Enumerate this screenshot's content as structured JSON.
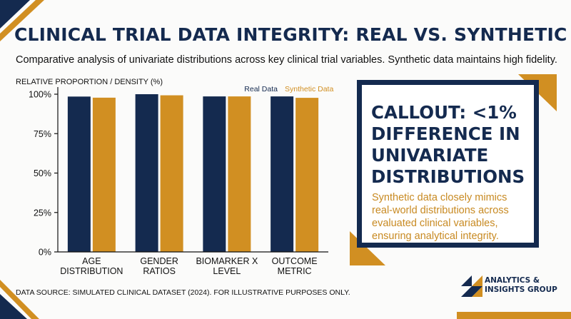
{
  "header": {
    "title": "CLINICAL TRIAL DATA INTEGRITY: REAL VS. SYNTHETIC",
    "subtitle": "Comparative analysis of univariate distributions across key clinical trial variables. Synthetic data maintains high fidelity."
  },
  "chart_data": {
    "type": "bar",
    "ylabel": "RELATIVE PROPORTION / DENSITY (%)",
    "categories": [
      [
        "AGE",
        "DISTRIBUTION"
      ],
      [
        "GENDER",
        "RATIOS"
      ],
      [
        "BIOMARKER X",
        "LEVEL"
      ],
      [
        "OUTCOME",
        "METRIC"
      ]
    ],
    "series": [
      {
        "name": "Real Data",
        "values": [
          98.5,
          100,
          98.6,
          98.6
        ],
        "color": "#142a4f"
      },
      {
        "name": "Synthetic Data",
        "values": [
          97.8,
          99.3,
          98.6,
          97.7
        ],
        "color": "#d18f22"
      }
    ],
    "ylim": [
      0,
      100
    ],
    "yticks": [
      0,
      25,
      50,
      75,
      100
    ],
    "ytick_labels": [
      "0%",
      "25%",
      "50%",
      "75%",
      "100%"
    ],
    "legend_position": "top-right",
    "grid": false
  },
  "callout": {
    "title_lines": [
      "CALLOUT: <1%",
      "DIFFERENCE IN",
      "UNIVARIATE",
      "DISTRIBUTIONS"
    ],
    "body_lines": [
      "Synthetic data closely mimics",
      "real-world distributions across",
      "evaluated clinical variables,",
      "ensuring analytical integrity."
    ]
  },
  "footer": {
    "source": "DATA SOURCE: SIMULATED CLINICAL DATASET (2024). FOR ILLUSTRATIVE PURPOSES ONLY."
  },
  "logo": {
    "lines": [
      "ANALYTICS &",
      "INSIGHTS GROUP"
    ]
  },
  "colors": {
    "navy": "#142a4f",
    "gold": "#d18f22",
    "callout_text": "#c88a22"
  }
}
